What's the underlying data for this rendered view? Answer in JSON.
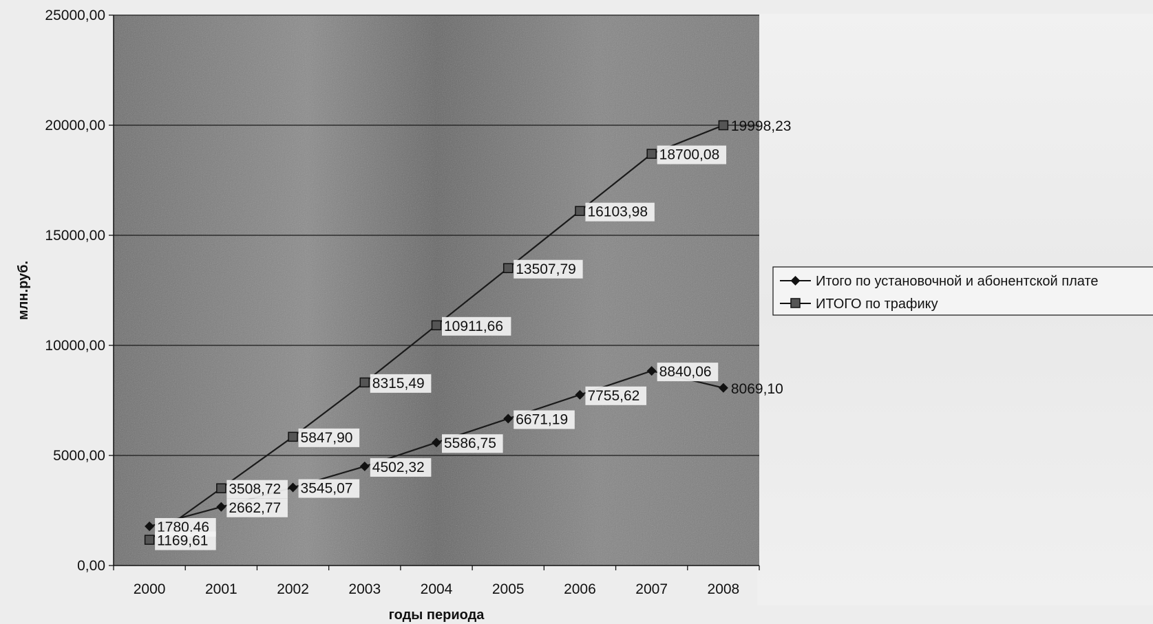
{
  "chart_data": {
    "type": "line",
    "title": "",
    "xlabel": "годы периода",
    "ylabel": "млн.руб.",
    "categories": [
      "2000",
      "2001",
      "2002",
      "2003",
      "2004",
      "2005",
      "2006",
      "2007",
      "2008"
    ],
    "ylim": [
      0,
      25000
    ],
    "yticks": [
      0,
      5000,
      10000,
      15000,
      20000,
      25000
    ],
    "ytick_labels": [
      "0,00",
      "5000,00",
      "10000,00",
      "15000,00",
      "20000,00",
      "25000,00"
    ],
    "grid": "horizontal",
    "legend_position": "right",
    "series": [
      {
        "name": "Итого по установочной и абонентской плате",
        "marker": "diamond",
        "color": "#1a1a1a",
        "values": [
          1780.46,
          2662.77,
          3545.07,
          4502.32,
          5586.75,
          6671.19,
          7755.62,
          8840.06,
          8069.1
        ],
        "labels": [
          "1780,46",
          "2662,77",
          "3545,07",
          "4502,32",
          "5586,75",
          "6671,19",
          "7755,62",
          "8840,06",
          "8069,10"
        ]
      },
      {
        "name": "ИТОГО по трафику",
        "marker": "square",
        "color": "#1a1a1a",
        "values": [
          1169.61,
          3508.72,
          5847.9,
          8315.49,
          10911.66,
          13507.79,
          16103.98,
          18700.08,
          19998.23
        ],
        "labels": [
          "1169,61",
          "3508,72",
          "5847,90",
          "8315,49",
          "10911,66",
          "13507,79",
          "16103,98",
          "18700,08",
          "19998,23"
        ]
      }
    ]
  }
}
